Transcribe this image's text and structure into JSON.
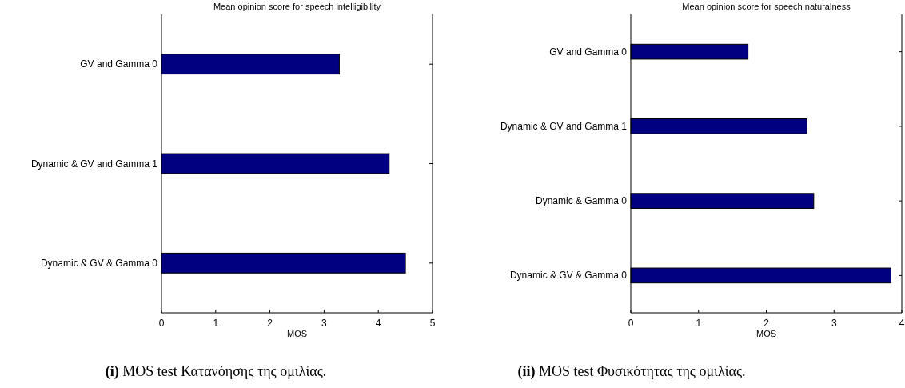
{
  "chart_data": [
    {
      "type": "bar",
      "orientation": "horizontal",
      "title": "Mean opinion score for speech intelligibility",
      "xlabel": "MOS",
      "categories": [
        "GV and Gamma 0",
        "Dynamic & GV and Gamma 1",
        "Dynamic & GV & Gamma 0"
      ],
      "values": [
        3.28,
        4.2,
        4.5
      ],
      "color": "#000080",
      "xlim": [
        0,
        5
      ],
      "xticks": [
        0,
        1,
        2,
        3,
        4,
        5
      ],
      "annotations": [
        "(i) MOS test Κατανόησης της ομιλίας."
      ]
    },
    {
      "type": "bar",
      "orientation": "horizontal",
      "title": "Mean opinion score for speech naturalness",
      "xlabel": "MOS",
      "categories": [
        "GV and Gamma 0",
        "Dynamic & GV and Gamma 1",
        "Dynamic & Gamma 0",
        "Dynamic & GV & Gamma 0"
      ],
      "values": [
        1.73,
        2.6,
        2.7,
        3.84
      ],
      "color": "#000080",
      "xlim": [
        0,
        4
      ],
      "xticks": [
        0,
        1,
        2,
        3,
        4
      ],
      "annotations": [
        "(ii) MOS test Φυσικότητας της ομιλίας."
      ]
    }
  ]
}
